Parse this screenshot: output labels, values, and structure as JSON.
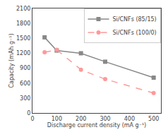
{
  "chart_data": {
    "type": "line",
    "x": [
      50,
      100,
      200,
      300,
      500
    ],
    "series": [
      {
        "name": "Si/CNFs (85/15)",
        "color": "#888888",
        "line_style": "solid",
        "marker": "square",
        "values": [
          1520,
          1255,
          1200,
          1030,
          710
        ]
      },
      {
        "name": "Si/CNFs (100/0)",
        "color": "#ff9999",
        "line_style": "dashed",
        "marker": "circle",
        "values": [
          1220,
          1270,
          870,
          680,
          400
        ]
      }
    ],
    "xlabel": "Discharge current density (mA g⁻¹)",
    "ylabel": "Capacity (mAh g⁻¹)",
    "xlim": [
      0,
      530
    ],
    "ylim": [
      0,
      2100
    ],
    "xticks": [
      0,
      100,
      200,
      300,
      400,
      500
    ],
    "yticks": [
      0,
      300,
      600,
      900,
      1200,
      1500,
      1800,
      2100
    ],
    "grid": false,
    "legend": "upper right"
  }
}
